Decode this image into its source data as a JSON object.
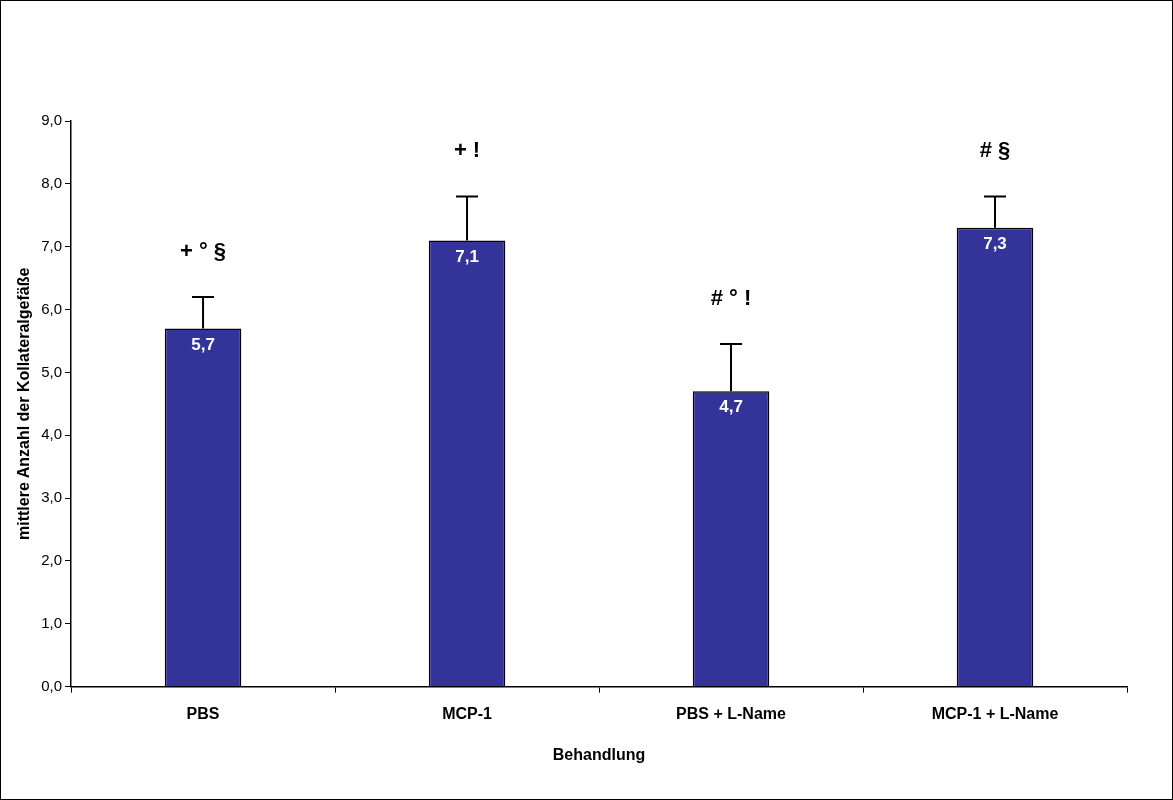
{
  "chart_data": {
    "type": "bar",
    "xlabel": "Behandlung",
    "ylabel": "mittlere Anzahl der Kollateralgefäße",
    "categories": [
      "PBS",
      "MCP-1",
      "PBS + L-Name",
      "MCP-1 + L-Name"
    ],
    "values": [
      5.7,
      7.1,
      4.7,
      7.3
    ],
    "errors": [
      0.5,
      0.7,
      0.75,
      0.5
    ],
    "value_labels": [
      "5,7",
      "7,1",
      "4,7",
      "7,3"
    ],
    "color": "#333399",
    "ylim": [
      0,
      9
    ],
    "yticks": [
      {
        "value": 0,
        "label": "0,0"
      },
      {
        "value": 1,
        "label": "1,0"
      },
      {
        "value": 2,
        "label": "2,0"
      },
      {
        "value": 3,
        "label": "3,0"
      },
      {
        "value": 4,
        "label": "4,0"
      },
      {
        "value": 5,
        "label": "5,0"
      },
      {
        "value": 6,
        "label": "6,0"
      },
      {
        "value": 7,
        "label": "7,0"
      },
      {
        "value": 8,
        "label": "8,0"
      },
      {
        "value": 9,
        "label": "9,0"
      }
    ],
    "grid": false,
    "legend": false,
    "annotations": [
      "+ ° §",
      "+ !",
      "# ° !",
      "# §"
    ]
  }
}
